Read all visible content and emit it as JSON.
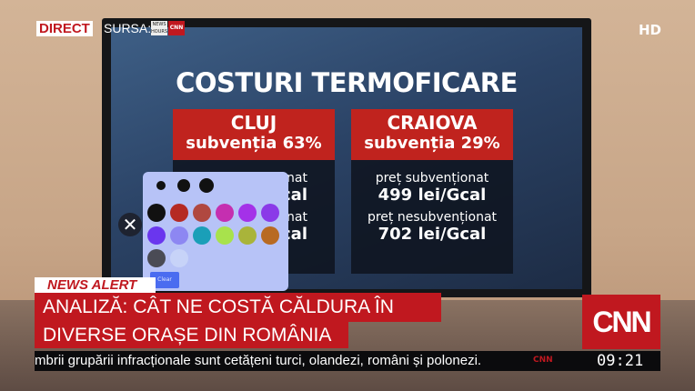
{
  "overlay": {
    "direct": "DIRECT",
    "source": "SURSA:",
    "source_logo_1": "NEWS HOURS",
    "source_logo_2": "CNN",
    "hd": "HD"
  },
  "screen": {
    "title": "COSTURI TERMOFICARE",
    "columns": [
      {
        "city": "CLUJ",
        "subsidy": "subvenția 63%",
        "lines": [
          "ționat",
          "cal",
          "ționat",
          "cal"
        ]
      },
      {
        "city": "CRAIOVA",
        "subsidy": "subvenția 29%",
        "subsidized_label": "preț subvenționat",
        "subsidized_value": "499 lei/Gcal",
        "unsubsidized_label": "preț nesubvenționat",
        "unsubsidized_value": "702 lei/Gcal"
      }
    ],
    "color_picker": {
      "sizes": 3,
      "colors": [
        "#111111",
        "#b52a23",
        "#b04840",
        "#c52fb0",
        "#a431e8",
        "#8a3ae8",
        "#6a36ee",
        "#8d87f2",
        "#1a9fb8",
        "#a8e24c",
        "#a9b43a",
        "#b86a22",
        "#4a4b55",
        "#c7d3f8"
      ],
      "clear_label": "Clear"
    }
  },
  "lower_third": {
    "alert": "NEWS ALERT",
    "headline_1": "ANALIZĂ: CÂT NE COSTĂ CĂLDURA ÎN",
    "headline_2": "DIVERSE ORAȘE DIN ROMÂNIA",
    "brand": "CNN",
    "ticker": "mbrii grupării infracționale sunt cetățeni turci, olandezi, români și polonezi.",
    "ticker_logo": "CNN",
    "time": "09:21"
  }
}
